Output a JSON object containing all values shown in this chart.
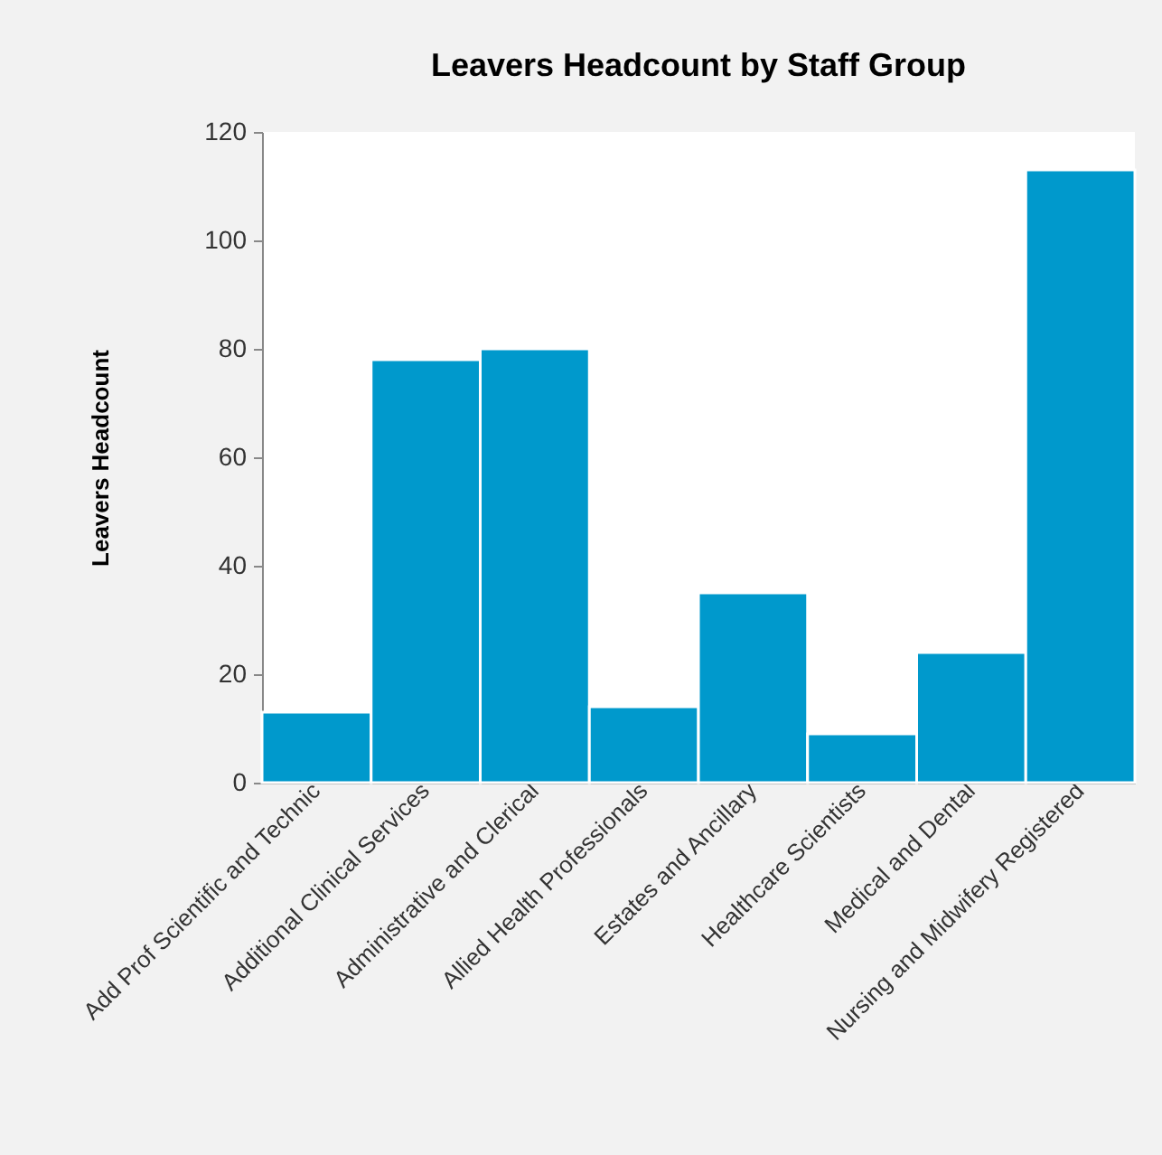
{
  "chart_data": {
    "type": "bar",
    "title": "Leavers Headcount by Staff Group",
    "ylabel": "Leavers Headcount",
    "categories": [
      "Add Prof Scientific and Technic",
      "Additional Clinical Services",
      "Administrative and Clerical",
      "Allied Health Professionals",
      "Estates and Ancillary",
      "Healthcare Scientists",
      "Medical and Dental",
      "Nursing and Midwifery Registered"
    ],
    "values": [
      13,
      78,
      80,
      14,
      35,
      9,
      24,
      113
    ],
    "color": "#0099cc",
    "ylim": [
      0,
      120
    ],
    "yticks": [
      0,
      20,
      40,
      60,
      80,
      100,
      120
    ],
    "grid": false
  }
}
